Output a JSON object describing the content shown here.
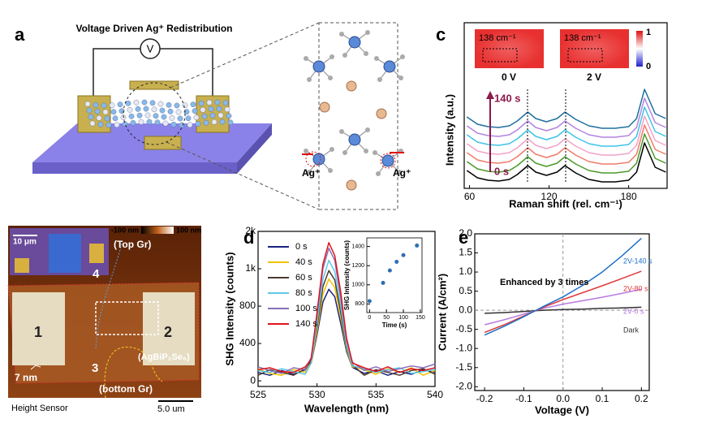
{
  "panels": {
    "a": {
      "label": "a",
      "title": "Voltage Driven Ag⁺ Redistribution",
      "meter": "V",
      "ion_labels": [
        "Ag⁺",
        "Ag⁺"
      ]
    },
    "b": {
      "label": "b",
      "colorbar": [
        "-100 nm",
        "100 nm"
      ],
      "inset_scale": "10 μm",
      "top": "(Top Gr)",
      "regions": [
        "1",
        "2",
        "3",
        "4"
      ],
      "flake": "(AgBiP₂Se₆)",
      "step": "7 nm",
      "bottom": "(bottom Gr)",
      "mode": "Height Sensor",
      "scale": "5.0 um"
    },
    "c": {
      "label": "c",
      "maps": [
        {
          "wavenumber": "138 cm⁻¹",
          "voltage": "0 V"
        },
        {
          "wavenumber": "138 cm⁻¹",
          "voltage": "2 V"
        }
      ],
      "colorbar": [
        1,
        0
      ]
    },
    "d": {
      "label": "d"
    },
    "e": {
      "label": "e"
    }
  },
  "chart_data": [
    {
      "type": "line",
      "xlabel": "Raman shift (rel. cm⁻¹)",
      "ylabel": "Intensity (a.u.)",
      "x": [
        58,
        66,
        74,
        82,
        90,
        96,
        104,
        110,
        118,
        126,
        132,
        140,
        150,
        160,
        170,
        180,
        186,
        192,
        200,
        208
      ],
      "series": [
        {
          "color": "#000000",
          "values": [
            1.8,
            0.9,
            0.6,
            0.5,
            0.7,
            1.3,
            2.4,
            1.6,
            1.2,
            1.6,
            2.4,
            1.5,
            0.7,
            0.4,
            0.4,
            0.6,
            1.6,
            5.2,
            2.2,
            1.6
          ]
        },
        {
          "color": "#4a9a2a",
          "values": [
            2.9,
            2.0,
            1.7,
            1.6,
            1.8,
            2.4,
            3.5,
            2.7,
            2.3,
            2.7,
            3.5,
            2.6,
            1.8,
            1.5,
            1.5,
            1.7,
            2.7,
            6.3,
            3.3,
            2.7
          ]
        },
        {
          "color": "#f07a6a",
          "values": [
            4.0,
            3.1,
            2.8,
            2.7,
            2.9,
            3.5,
            4.6,
            3.8,
            3.4,
            3.8,
            4.6,
            3.7,
            2.9,
            2.6,
            2.6,
            2.8,
            3.8,
            7.4,
            4.4,
            3.8
          ]
        },
        {
          "color": "#f2a2c8",
          "values": [
            5.1,
            4.2,
            3.9,
            3.8,
            4.0,
            4.6,
            5.7,
            4.9,
            4.5,
            4.9,
            5.7,
            4.8,
            4.0,
            3.7,
            3.7,
            3.9,
            4.9,
            8.5,
            5.5,
            4.9
          ]
        },
        {
          "color": "#3cc4e6",
          "values": [
            6.2,
            5.3,
            5.0,
            4.9,
            5.1,
            5.7,
            6.8,
            6.0,
            5.6,
            6.0,
            6.8,
            5.9,
            5.1,
            4.8,
            4.8,
            5.0,
            6.0,
            9.6,
            6.6,
            6.0
          ]
        },
        {
          "color": "#b283e0",
          "values": [
            7.3,
            6.4,
            6.1,
            6.0,
            6.2,
            6.8,
            7.9,
            7.1,
            6.7,
            7.1,
            7.9,
            7.0,
            6.2,
            5.9,
            5.9,
            6.1,
            7.1,
            10.7,
            7.7,
            7.1
          ]
        },
        {
          "color": "#1f6f9f",
          "values": [
            8.4,
            7.5,
            7.2,
            7.1,
            7.3,
            7.9,
            9.0,
            8.2,
            7.8,
            8.2,
            9.0,
            8.1,
            7.3,
            7.0,
            7.0,
            7.2,
            8.2,
            11.8,
            8.8,
            8.2
          ]
        }
      ],
      "xlim": [
        56,
        209
      ],
      "ylim": [
        -0.4,
        20
      ],
      "xticks": [
        60,
        120,
        180
      ],
      "annotations": [
        "140 s",
        "0 s"
      ]
    },
    {
      "type": "line",
      "xlabel": "Wavelength (nm)",
      "ylabel": "SHG Intensity (counts)",
      "x": [
        525,
        526,
        527,
        528,
        529,
        529.5,
        530,
        530.5,
        531,
        531.5,
        532,
        532.5,
        533,
        534,
        535,
        536,
        537,
        538,
        539,
        540
      ],
      "series": [
        {
          "name": "0 s",
          "color": "#1a237e",
          "values": [
            90,
            60,
            110,
            70,
            118,
            190,
            495,
            845,
            980,
            900,
            620,
            315,
            144,
            80,
            110,
            60,
            100,
            70,
            120,
            90
          ]
        },
        {
          "name": "40 s",
          "color": "#f2c200",
          "values": [
            130,
            80,
            60,
            120,
            90,
            200,
            530,
            930,
            1090,
            1000,
            690,
            340,
            150,
            120,
            70,
            130,
            90,
            140,
            60,
            110
          ]
        },
        {
          "name": "60 s",
          "color": "#4a3a30",
          "values": [
            60,
            120,
            90,
            60,
            130,
            210,
            580,
            1010,
            1180,
            1080,
            740,
            360,
            170,
            60,
            120,
            90,
            60,
            110,
            130,
            70
          ]
        },
        {
          "name": "80 s",
          "color": "#5ec8e8",
          "values": [
            110,
            90,
            130,
            100,
            70,
            190,
            620,
            1090,
            1290,
            1170,
            800,
            380,
            160,
            130,
            90,
            120,
            140,
            80,
            100,
            120
          ]
        },
        {
          "name": "100 s",
          "color": "#8a70b8",
          "values": [
            150,
            110,
            80,
            140,
            120,
            250,
            700,
            1200,
            1420,
            1290,
            890,
            430,
            200,
            110,
            150,
            100,
            130,
            160,
            140,
            180
          ]
        },
        {
          "name": "140 s",
          "color": "#e0141e",
          "values": [
            120,
            140,
            100,
            90,
            150,
            230,
            740,
            1250,
            1480,
            1340,
            960,
            460,
            190,
            140,
            100,
            150,
            90,
            130,
            110,
            140
          ]
        }
      ],
      "xlim": [
        525,
        540
      ],
      "ylim": [
        -60,
        1600
      ],
      "xticks": [
        525,
        530,
        535,
        540
      ],
      "yticks": [
        0,
        400,
        800,
        {
          "value": 1200,
          "label": "1k"
        },
        {
          "value": 1600,
          "label": "2k"
        }
      ]
    },
    {
      "type": "scatter",
      "xlabel": "Time (s)",
      "ylabel": "SHG Intensity (counts)",
      "x": [
        0,
        40,
        60,
        80,
        100,
        140
      ],
      "values": [
        830,
        1020,
        1150,
        1240,
        1310,
        1410
      ],
      "color": "#2e6fb0",
      "xlim": [
        -8,
        155
      ],
      "ylim": [
        710,
        1490
      ],
      "xticks": [
        0,
        50,
        100,
        150
      ],
      "yticks": [
        800,
        1000,
        1200,
        1400
      ]
    },
    {
      "type": "line",
      "xlabel": "Voltage (V)",
      "ylabel": "Current (A/cm²)",
      "x": [
        -0.2,
        -0.15,
        -0.1,
        -0.05,
        0,
        0.05,
        0.1,
        0.15,
        0.2
      ],
      "series": [
        {
          "name": "Dark",
          "color": "#333333",
          "values": [
            -0.08,
            -0.06,
            -0.03,
            0.0,
            0.02,
            0.03,
            0.05,
            0.06,
            0.08
          ]
        },
        {
          "name": "2V-0 s",
          "color": "#b77ae0",
          "values": [
            -0.38,
            -0.25,
            -0.1,
            0.05,
            0.16,
            0.25,
            0.34,
            0.44,
            0.55
          ]
        },
        {
          "name": "2V-80 s",
          "color": "#e03a3a",
          "values": [
            -0.58,
            -0.38,
            -0.15,
            0.08,
            0.28,
            0.46,
            0.64,
            0.83,
            1.02
          ]
        },
        {
          "name": "2V-140 s",
          "color": "#1f6fc8",
          "values": [
            -0.65,
            -0.42,
            -0.17,
            0.1,
            0.35,
            0.65,
            1.0,
            1.42,
            1.88
          ]
        }
      ],
      "xlim": [
        -0.225,
        0.22
      ],
      "ylim": [
        -2.1,
        2.0
      ],
      "xticks": [
        -0.2,
        -0.1,
        {
          "value": 0,
          "label": "0.0"
        },
        0.1,
        0.2
      ],
      "yticks": [
        {
          "value": -2,
          "label": "-2.0"
        },
        -1.5,
        {
          "value": -1,
          "label": "-1.0"
        },
        -0.5,
        {
          "value": 0,
          "label": "0.0"
        },
        0.5,
        {
          "value": 1,
          "label": "1.0"
        },
        1.5,
        {
          "value": 2,
          "label": "2.0"
        }
      ],
      "annotation": "Enhanced by 3 times"
    }
  ]
}
